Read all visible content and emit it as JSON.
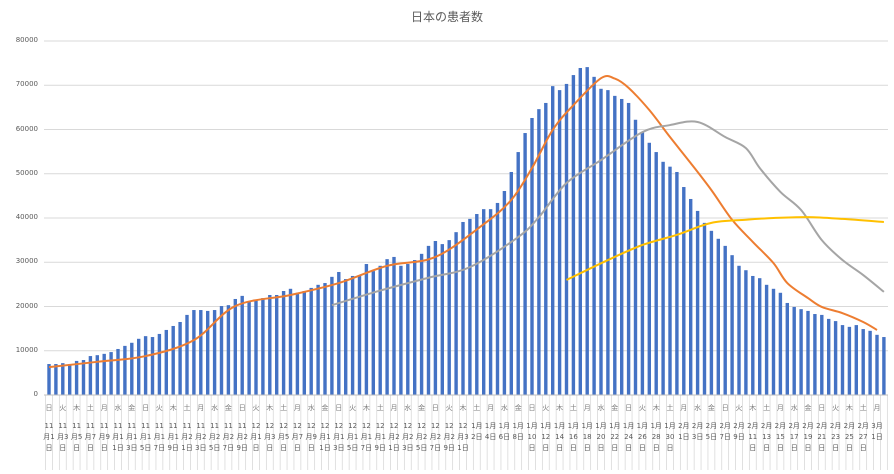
{
  "chart_data": {
    "type": "bar+line",
    "title": "日本の患者数",
    "ylim": [
      0,
      80000
    ],
    "yticks": [
      0,
      10000,
      20000,
      30000,
      40000,
      50000,
      60000,
      70000,
      80000
    ],
    "grid": true,
    "legend": "none",
    "colors": {
      "bars": "#4472C4",
      "line1": "#ED7D31",
      "line2": "#A5A5A5",
      "line3": "#FFC000",
      "grid": "#D9D9D9",
      "text": "#595959"
    },
    "x_tick_weekdays": [
      "日",
      "火",
      "木",
      "土",
      "月",
      "水",
      "金",
      "日",
      "火",
      "木",
      "土",
      "月",
      "水",
      "金",
      "日",
      "火",
      "木",
      "土",
      "月",
      "水",
      "金",
      "日",
      "火",
      "木",
      "土",
      "月",
      "水",
      "金",
      "日",
      "火",
      "木",
      "土",
      "月",
      "水",
      "金",
      "日",
      "火",
      "木",
      "土",
      "月",
      "水",
      "金",
      "日",
      "火",
      "木",
      "土",
      "月",
      "水",
      "金",
      "日",
      "火",
      "木",
      "土",
      "月",
      "水",
      "金",
      "日",
      "火",
      "木",
      "土",
      "月"
    ],
    "x_tick_dates": [
      "11月1日",
      "11月3日",
      "11月5日",
      "11月7日",
      "11月9日",
      "11月11日",
      "11月13日",
      "11月15日",
      "11月17日",
      "11月19日",
      "11月21日",
      "11月23日",
      "11月25日",
      "11月27日",
      "11月29日",
      "12月1日",
      "12月3日",
      "12月5日",
      "12月7日",
      "12月9日",
      "12月11日",
      "12月13日",
      "12月15日",
      "12月17日",
      "12月19日",
      "12月21日",
      "12月23日",
      "12月25日",
      "12月27日",
      "12月29日",
      "12月31日",
      "1月2日",
      "1月4日",
      "1月6日",
      "1月8日",
      "1月10日",
      "1月12日",
      "1月14日",
      "1月16日",
      "1月18日",
      "1月20日",
      "1月22日",
      "1月24日",
      "1月26日",
      "1月28日",
      "1月30日",
      "2月1日",
      "2月3日",
      "2月5日",
      "2月7日",
      "2月9日",
      "2月11日",
      "2月13日",
      "2月15日",
      "2月17日",
      "2月19日",
      "2月21日",
      "2月23日",
      "2月25日",
      "2月27日",
      "3月1日"
    ],
    "bars": {
      "start_date": "11月1日",
      "values": [
        7000,
        7000,
        7200,
        7000,
        7700,
        7900,
        8800,
        9000,
        9300,
        9700,
        10400,
        11100,
        11800,
        12700,
        13300,
        13100,
        13800,
        14700,
        15600,
        16500,
        18100,
        19200,
        19200,
        19000,
        19200,
        20100,
        20300,
        21700,
        22400,
        21200,
        21500,
        21900,
        22600,
        22600,
        23500,
        24000,
        23100,
        23500,
        24200,
        24900,
        25300,
        26700,
        27800,
        26200,
        26900,
        27100,
        29600,
        28000,
        29200,
        30700,
        31200,
        29200,
        29600,
        30500,
        31900,
        33700,
        34800,
        34100,
        35000,
        36800,
        39100,
        39800,
        40900,
        42000,
        42000,
        43400,
        46100,
        50400,
        54900,
        59200,
        62600,
        64600,
        66000,
        69800,
        68900,
        70300,
        72300,
        73900,
        74100,
        71900,
        69200,
        68900,
        67600,
        66900,
        66000,
        62200,
        59400,
        57000,
        54900,
        52700,
        51600,
        50400,
        47000,
        44300,
        41600,
        38900,
        37100,
        35300,
        33700,
        31600,
        29200,
        28200,
        26900,
        26400,
        24900,
        24000,
        23100,
        20800,
        19900,
        19400,
        19000,
        18300,
        18100,
        17200,
        16700,
        15800,
        15400,
        15800,
        14900,
        14500,
        13600,
        13100
      ]
    },
    "lines": [
      {
        "color": "#ED7D31",
        "points": [
          [
            "11月1日",
            6300
          ],
          [
            "11月8日",
            7500
          ],
          [
            "11月15日",
            8800
          ],
          [
            "11月22日",
            12400
          ],
          [
            "11月28日",
            20100
          ],
          [
            "12月6日",
            22600
          ],
          [
            "12月13日",
            25300
          ],
          [
            "12月20日",
            29200
          ],
          [
            "12月27日",
            31200
          ],
          [
            "1月3日",
            38600
          ],
          [
            "1月7日",
            44100
          ],
          [
            "1月10日",
            51300
          ],
          [
            "1月13日",
            59900
          ],
          [
            "1月16日",
            65500
          ],
          [
            "1月20日",
            71600
          ],
          [
            "1月22日",
            71500
          ],
          [
            "1月24日",
            69400
          ],
          [
            "1月27日",
            64400
          ],
          [
            "1月30日",
            58300
          ],
          [
            "2月2日",
            52400
          ],
          [
            "2月5日",
            46300
          ],
          [
            "2月8日",
            39600
          ],
          [
            "2月11日",
            34600
          ],
          [
            "2月14日",
            29800
          ],
          [
            "2月16日",
            25300
          ],
          [
            "2月19日",
            21900
          ],
          [
            "2月21日",
            19900
          ],
          [
            "2月24日",
            18500
          ],
          [
            "2月27日",
            16500
          ],
          [
            "3月1日",
            14700
          ]
        ]
      },
      {
        "color": "#A5A5A5",
        "points": [
          [
            "12月12日",
            20300
          ],
          [
            "12月19日",
            23600
          ],
          [
            "12月26日",
            26500
          ],
          [
            "1月1日",
            28900
          ],
          [
            "1月8日",
            35700
          ],
          [
            "1月11日",
            40200
          ],
          [
            "1月15日",
            47900
          ],
          [
            "1月20日",
            53100
          ],
          [
            "1月26日",
            59400
          ],
          [
            "1月30日",
            61000
          ],
          [
            "2月3日",
            61700
          ],
          [
            "2月7日",
            58300
          ],
          [
            "2月10日",
            55800
          ],
          [
            "2月12日",
            51300
          ],
          [
            "2月15日",
            45900
          ],
          [
            "2月18日",
            41800
          ],
          [
            "2月21日",
            35000
          ],
          [
            "2月24日",
            30500
          ],
          [
            "2月27日",
            27100
          ],
          [
            "3月2日",
            23300
          ]
        ]
      },
      {
        "color": "#FFC000",
        "points": [
          [
            "1月15日",
            26000
          ],
          [
            "1月21日",
            30500
          ],
          [
            "1月26日",
            33900
          ],
          [
            "1月31日",
            36200
          ],
          [
            "2月5日",
            38900
          ],
          [
            "2月10日",
            39600
          ],
          [
            "2月14日",
            40000
          ],
          [
            "2月19日",
            40200
          ],
          [
            "2月24日",
            39800
          ],
          [
            "3月2日",
            39100
          ]
        ]
      }
    ]
  }
}
